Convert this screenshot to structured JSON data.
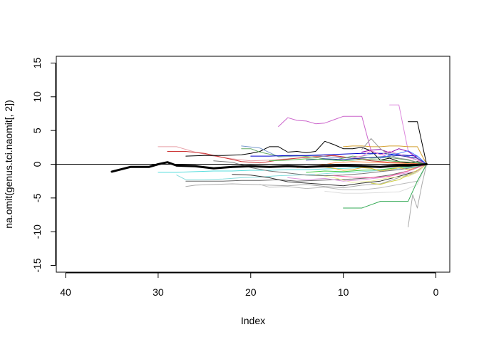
{
  "chart_data": {
    "type": "line",
    "title": "",
    "xlabel": "Index",
    "ylabel": "na.omit(genus.tci.naomit[, 2])",
    "xlim": [
      41,
      -1.5
    ],
    "ylim": [
      -16,
      16
    ],
    "x_ticks": [
      40,
      30,
      20,
      10,
      0
    ],
    "y_ticks": [
      -15,
      -10,
      -5,
      0,
      5,
      10,
      15
    ],
    "reference_line_y": 0,
    "grid": false,
    "legend": "none",
    "series": [
      {
        "color": "#000000",
        "width": 3,
        "x": [
          35,
          33,
          31,
          30,
          29,
          28,
          26,
          24,
          22,
          20,
          18,
          16,
          14,
          12,
          10,
          8,
          6,
          4,
          3,
          2,
          1
        ],
        "y": [
          -1.1,
          -0.4,
          -0.4,
          0.0,
          0.3,
          -0.2,
          -0.3,
          -0.6,
          -0.4,
          -0.3,
          -0.4,
          -0.3,
          -0.4,
          -0.3,
          -0.2,
          -0.3,
          -0.4,
          -0.2,
          -0.2,
          -0.1,
          0.0
        ]
      },
      {
        "color": "#cc66cc",
        "width": 1,
        "x": [
          17,
          16,
          15,
          14,
          13,
          12,
          11,
          10,
          9,
          8,
          7,
          6,
          5,
          4,
          3,
          2,
          1
        ],
        "y": [
          5.6,
          6.9,
          6.5,
          6.4,
          6.0,
          6.1,
          6.6,
          7.1,
          7.1,
          7.1,
          2.0,
          1.5,
          1.0,
          0.8,
          0.6,
          0.3,
          0.0
        ]
      },
      {
        "color": "#dd88dd",
        "width": 1,
        "x": [
          5,
          4,
          3,
          2,
          1
        ],
        "y": [
          8.8,
          8.8,
          2.0,
          0.8,
          0.0
        ]
      },
      {
        "color": "#000000",
        "width": 1,
        "x": [
          3,
          2,
          1
        ],
        "y": [
          6.3,
          6.3,
          0.0
        ]
      },
      {
        "color": "#e8a0a8",
        "width": 1,
        "x": [
          30,
          28,
          26,
          24,
          22,
          20,
          18,
          16,
          14,
          12,
          10,
          8,
          6,
          4,
          2,
          1
        ],
        "y": [
          2.6,
          2.6,
          1.8,
          1.2,
          0.8,
          0.5,
          0.6,
          0.8,
          1.0,
          1.4,
          1.0,
          0.8,
          0.6,
          0.4,
          0.3,
          0.0
        ]
      },
      {
        "color": "#cc3333",
        "width": 1,
        "x": [
          29,
          27,
          25,
          23,
          21,
          19,
          17,
          15,
          13,
          11,
          9,
          7,
          5,
          3,
          1
        ],
        "y": [
          1.9,
          1.9,
          1.6,
          1.0,
          0.4,
          0.2,
          0.6,
          0.9,
          1.1,
          1.3,
          0.9,
          0.5,
          0.3,
          0.2,
          0.0
        ]
      },
      {
        "color": "#000000",
        "width": 1,
        "x": [
          27,
          25,
          23,
          21,
          20,
          19,
          18,
          17,
          16,
          15,
          14,
          13,
          12,
          11,
          10,
          9,
          8,
          7,
          6,
          5,
          4,
          3,
          2,
          1
        ],
        "y": [
          1.2,
          1.3,
          1.3,
          1.4,
          1.6,
          1.9,
          2.6,
          2.6,
          1.8,
          1.9,
          1.7,
          1.9,
          3.4,
          2.9,
          2.3,
          2.3,
          2.5,
          2.0,
          0.6,
          0.9,
          0.4,
          0.2,
          0.4,
          0.0
        ]
      },
      {
        "color": "#7799cc",
        "width": 1,
        "x": [
          21,
          19,
          17,
          15,
          13,
          11,
          9,
          7,
          5,
          3,
          1
        ],
        "y": [
          2.7,
          2.4,
          1.1,
          1.2,
          1.3,
          1.0,
          0.9,
          1.5,
          1.7,
          1.2,
          0.0
        ]
      },
      {
        "color": "#d4a030",
        "width": 1,
        "x": [
          10,
          9,
          8,
          7,
          6,
          5,
          4,
          3,
          2,
          1
        ],
        "y": [
          2.6,
          2.7,
          2.7,
          2.6,
          2.6,
          2.7,
          2.7,
          2.6,
          2.6,
          0.0
        ]
      },
      {
        "color": "#66aa66",
        "width": 1,
        "x": [
          21,
          20,
          19,
          17,
          15,
          13,
          11,
          9,
          7,
          5,
          3,
          1
        ],
        "y": [
          2.3,
          2.3,
          1.8,
          1.2,
          1.3,
          1.0,
          0.6,
          1.2,
          0.9,
          1.0,
          0.6,
          0.0
        ]
      },
      {
        "color": "#0000cc",
        "width": 1,
        "x": [
          20,
          18,
          16,
          14,
          12,
          10,
          8,
          6,
          4,
          2,
          1
        ],
        "y": [
          1.2,
          1.2,
          1.3,
          1.3,
          1.4,
          1.5,
          1.6,
          1.6,
          1.4,
          1.2,
          0.0
        ]
      },
      {
        "color": "#8800aa",
        "width": 1,
        "x": [
          8,
          7,
          6,
          5,
          4,
          3,
          2,
          1
        ],
        "y": [
          1.8,
          2.1,
          2.2,
          1.7,
          2.3,
          1.9,
          0.9,
          0.0
        ]
      },
      {
        "color": "#ff88cc",
        "width": 1,
        "x": [
          9,
          8,
          7,
          6,
          5,
          4,
          3,
          2,
          1
        ],
        "y": [
          1.0,
          1.2,
          2.0,
          1.4,
          1.9,
          1.5,
          1.0,
          0.6,
          0.0
        ]
      },
      {
        "color": "#2233aa",
        "width": 1,
        "x": [
          14,
          12,
          10,
          8,
          6,
          4,
          2,
          1
        ],
        "y": [
          0.6,
          0.8,
          0.7,
          0.9,
          1.1,
          1.3,
          0.9,
          0.0
        ]
      },
      {
        "color": "#999999",
        "width": 1,
        "x": [
          8,
          7,
          6,
          5,
          4,
          3,
          2,
          1
        ],
        "y": [
          2.2,
          3.8,
          2.3,
          1.3,
          0.9,
          0.7,
          0.3,
          0.0
        ]
      },
      {
        "color": "#55bb55",
        "width": 1,
        "x": [
          18,
          16,
          14,
          12,
          10,
          8,
          6,
          4,
          2,
          1
        ],
        "y": [
          0.5,
          0.6,
          0.8,
          0.7,
          0.5,
          0.7,
          0.6,
          0.4,
          0.2,
          0.0
        ]
      },
      {
        "color": "#44cc44",
        "width": 1,
        "x": [
          14,
          12,
          10,
          8,
          6,
          4,
          2,
          1
        ],
        "y": [
          -1.2,
          -1.0,
          -1.1,
          -0.9,
          -0.8,
          -0.5,
          -0.3,
          0.0
        ]
      },
      {
        "color": "#55dddd",
        "width": 1,
        "x": [
          30,
          28,
          26,
          24,
          22,
          20,
          18,
          16,
          14,
          12,
          10,
          8,
          6,
          4,
          2,
          1
        ],
        "y": [
          -1.2,
          -1.2,
          -1.1,
          -1.0,
          -1.0,
          -0.9,
          -0.9,
          -0.8,
          -0.8,
          -0.7,
          -0.6,
          -0.5,
          -0.4,
          -0.3,
          -0.2,
          0.0
        ]
      },
      {
        "color": "#88dddd",
        "width": 1,
        "x": [
          28,
          27,
          25,
          23,
          21,
          19,
          17,
          15,
          13,
          11,
          9,
          7,
          5,
          3,
          1
        ],
        "y": [
          -1.6,
          -2.3,
          -2.3,
          -2.2,
          -2.0,
          -1.9,
          -1.7,
          -1.6,
          -1.5,
          -1.3,
          -1.2,
          -1.0,
          -0.8,
          -0.5,
          0.0
        ]
      },
      {
        "color": "#666666",
        "width": 1,
        "x": [
          27,
          25,
          23,
          21,
          19,
          17,
          15,
          13,
          11,
          9,
          7,
          5,
          3,
          1
        ],
        "y": [
          -2.5,
          -2.5,
          -2.5,
          -2.4,
          -2.4,
          -2.3,
          -2.5,
          -2.4,
          -2.3,
          -2.2,
          -2.0,
          -1.6,
          -1.0,
          0.0
        ]
      },
      {
        "color": "#333333",
        "width": 1,
        "x": [
          22,
          20,
          18,
          16,
          14,
          12,
          10,
          8,
          6,
          4,
          2,
          1
        ],
        "y": [
          -1.5,
          -1.6,
          -2.0,
          -2.6,
          -2.8,
          -3.0,
          -3.2,
          -2.8,
          -2.5,
          -1.8,
          -1.0,
          0.0
        ]
      },
      {
        "color": "#aaaaaa",
        "width": 1,
        "x": [
          27,
          26,
          24,
          22,
          20,
          18,
          16,
          14,
          12,
          10,
          8,
          6,
          4,
          2,
          1
        ],
        "y": [
          -3.3,
          -3.1,
          -3.0,
          -2.9,
          -3.0,
          -3.1,
          -3.2,
          -3.0,
          -3.3,
          -3.5,
          -3.1,
          -2.9,
          -2.0,
          -1.2,
          0.0
        ]
      },
      {
        "color": "#bbbbbb",
        "width": 1,
        "x": [
          19,
          18,
          16,
          14,
          12,
          10,
          8,
          6,
          4,
          2,
          1
        ],
        "y": [
          -3.0,
          -3.4,
          -3.3,
          -3.6,
          -3.4,
          -3.8,
          -3.8,
          -3.5,
          -3.0,
          -2.5,
          0.0
        ]
      },
      {
        "color": "#dddddd",
        "width": 1,
        "x": [
          12,
          10,
          8,
          6,
          4,
          3,
          2,
          1
        ],
        "y": [
          -4.0,
          -4.3,
          -4.3,
          -4.2,
          -4.1,
          -3.6,
          -3.0,
          0.0
        ]
      },
      {
        "color": "#eeee99",
        "width": 1,
        "x": [
          13,
          11,
          9,
          7,
          5,
          3,
          2,
          1
        ],
        "y": [
          -1.5,
          -2.0,
          -2.7,
          -2.5,
          -2.0,
          -1.8,
          -1.2,
          0.0
        ]
      },
      {
        "color": "#dd99dd",
        "width": 1,
        "x": [
          16,
          14,
          12,
          10,
          8,
          6,
          4,
          2,
          1
        ],
        "y": [
          -2.0,
          -2.3,
          -2.1,
          -2.5,
          -2.3,
          -2.0,
          -1.5,
          -1.0,
          0.0
        ]
      },
      {
        "color": "#e6b830",
        "width": 1,
        "x": [
          12,
          11,
          10,
          9,
          8,
          7,
          6,
          5,
          4,
          3,
          2,
          1
        ],
        "y": [
          -0.4,
          -0.6,
          -0.9,
          -0.8,
          -0.5,
          -0.6,
          -1.0,
          -0.8,
          -0.5,
          -0.8,
          -0.5,
          0.0
        ]
      },
      {
        "color": "#ff9955",
        "width": 1,
        "x": [
          15,
          13,
          11,
          9,
          7,
          5,
          3,
          1
        ],
        "y": [
          -0.5,
          -0.3,
          0.2,
          0.4,
          0.3,
          0.2,
          0.1,
          0.0
        ]
      },
      {
        "color": "#33aa55",
        "width": 1,
        "x": [
          10,
          8,
          7,
          6,
          5,
          4,
          3,
          2,
          1
        ],
        "y": [
          -6.5,
          -6.5,
          -6.0,
          -5.5,
          -5.5,
          -5.5,
          -5.5,
          -2.5,
          0.0
        ]
      },
      {
        "color": "#aaaaaa",
        "width": 1,
        "x": [
          3,
          2.5,
          2,
          1.5,
          1
        ],
        "y": [
          -9.3,
          -4.5,
          -6.5,
          -3.0,
          0.0
        ]
      },
      {
        "color": "#777777",
        "width": 1,
        "x": [
          24,
          22,
          20,
          18,
          16,
          14,
          12,
          10,
          8,
          6,
          4,
          2,
          1
        ],
        "y": [
          0.5,
          0.3,
          -0.5,
          -1.0,
          -1.3,
          -1.6,
          -1.7,
          -1.6,
          -1.4,
          -1.1,
          -0.8,
          -0.4,
          0.0
        ]
      },
      {
        "color": "#cccc44",
        "width": 1,
        "x": [
          7,
          6,
          5,
          4,
          3,
          2,
          1
        ],
        "y": [
          -2.8,
          -3.0,
          -2.6,
          -2.3,
          -1.6,
          -0.9,
          0.0
        ]
      },
      {
        "color": "#ff66aa",
        "width": 1,
        "x": [
          11,
          9,
          7,
          5,
          3,
          1
        ],
        "y": [
          -1.7,
          -1.9,
          -2.0,
          -1.8,
          -1.0,
          0.0
        ]
      },
      {
        "color": "#4477ff",
        "width": 1,
        "x": [
          6,
          5,
          4,
          3,
          2,
          1
        ],
        "y": [
          0.9,
          1.3,
          1.6,
          2.0,
          1.2,
          0.0
        ]
      }
    ]
  }
}
